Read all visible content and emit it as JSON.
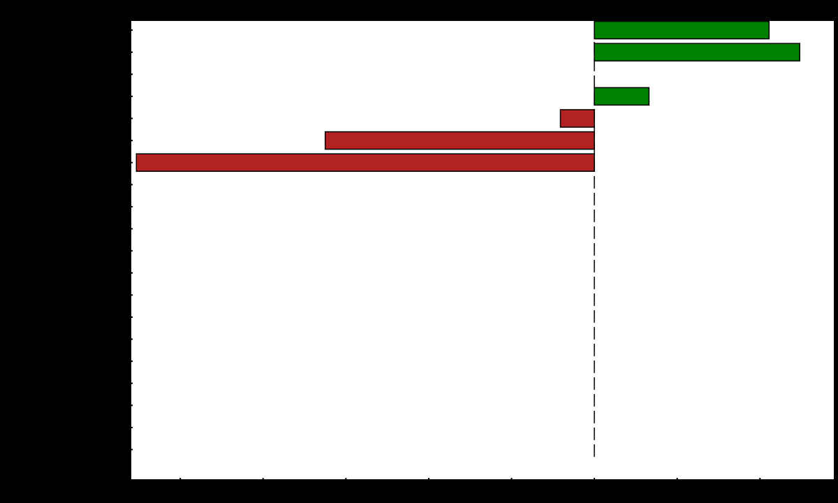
{
  "chart_data": {
    "type": "bar",
    "orientation": "horizontal",
    "title": "",
    "xlabel": "",
    "ylabel": "",
    "grid": false,
    "legend": "none",
    "xlim": [
      -5.6,
      2.9
    ],
    "reference_line": {
      "x": 0,
      "style": "dashed",
      "color": "#000000"
    },
    "series": [
      {
        "name": "",
        "values": [
          0,
          0,
          0,
          0,
          0,
          0,
          0,
          0,
          0,
          0,
          0,
          0,
          0,
          -5.53,
          -3.25,
          -0.41,
          0.66,
          0,
          2.48,
          2.11
        ]
      }
    ],
    "colors": {
      "negative": "#b22222",
      "positive": "#008000",
      "edge": "#000000",
      "background": "#ffffff",
      "frame": "#000000"
    }
  }
}
